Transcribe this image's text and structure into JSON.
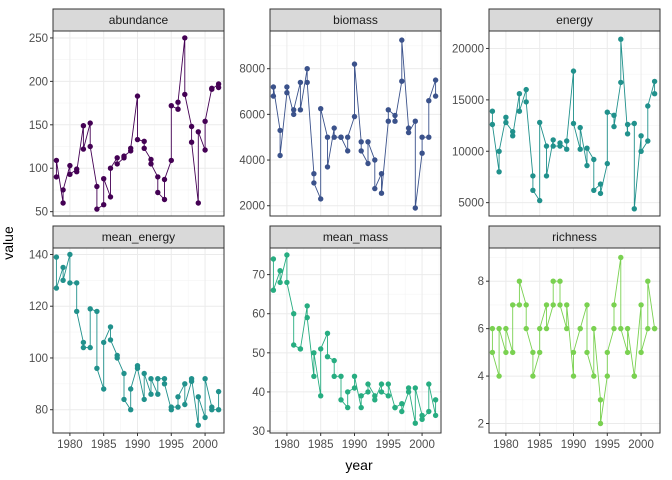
{
  "chart_data": {
    "type": "line",
    "xlabel": "year",
    "ylabel": "value",
    "grid": true,
    "x_ticks": [
      1980,
      1985,
      1990,
      1995,
      2000
    ],
    "x_tick_labels": [
      "1980",
      "1985",
      "1990",
      "1995",
      "2000"
    ],
    "xlim": [
      1977.5,
      2002.8
    ],
    "facet_rows": 2,
    "facet_cols": 3,
    "facets": [
      {
        "name": "abundance",
        "color": "#440154",
        "ylim": [
          45,
          258
        ],
        "y_ticks": [
          50,
          100,
          150,
          200,
          250
        ],
        "y_tick_labels": [
          "50",
          "100",
          "150",
          "200",
          "250"
        ],
        "x": [
          1978,
          1978,
          1979,
          1979,
          1980,
          1980,
          1981,
          1981,
          1982,
          1982,
          1983,
          1983,
          1984,
          1984,
          1985,
          1985,
          1986,
          1986,
          1987,
          1987,
          1988,
          1988,
          1989,
          1989,
          1990,
          1990,
          1991,
          1991,
          1992,
          1992,
          1993,
          1993,
          1994,
          1994,
          1995,
          1995,
          1996,
          1996,
          1997,
          1997,
          1998,
          1998,
          1999,
          1999,
          2000,
          2000,
          2001,
          2001,
          2002,
          2002
        ],
        "y": [
          90,
          109,
          60,
          75,
          103,
          93,
          99,
          96,
          149,
          122,
          152,
          125,
          79,
          53,
          58,
          88,
          67,
          100,
          112,
          105,
          112,
          114,
          120,
          123,
          183,
          133,
          131,
          123,
          110,
          105,
          90,
          72,
          64,
          87,
          109,
          172,
          168,
          176,
          250,
          185,
          148,
          130,
          60,
          142,
          121,
          154,
          192,
          191,
          197,
          193
        ]
      },
      {
        "name": "biomass",
        "color": "#3b528b",
        "ylim": [
          1550,
          9650
        ],
        "y_ticks": [
          2000,
          4000,
          6000,
          8000
        ],
        "y_tick_labels": [
          "2000",
          "4000",
          "6000",
          "8000"
        ],
        "x": [
          1978,
          1978,
          1979,
          1979,
          1980,
          1980,
          1981,
          1981,
          1982,
          1982,
          1983,
          1983,
          1984,
          1984,
          1985,
          1985,
          1986,
          1986,
          1987,
          1987,
          1988,
          1988,
          1989,
          1989,
          1990,
          1990,
          1991,
          1991,
          1992,
          1992,
          1993,
          1993,
          1994,
          1994,
          1995,
          1995,
          1996,
          1996,
          1997,
          1997,
          1998,
          1998,
          1999,
          1999,
          2000,
          2000,
          2001,
          2001,
          2002,
          2002
        ],
        "y": [
          6800,
          7200,
          5300,
          4200,
          6950,
          7200,
          6000,
          6200,
          7400,
          6200,
          8000,
          7400,
          3400,
          3000,
          2300,
          6250,
          5000,
          3700,
          5400,
          5000,
          5000,
          5000,
          4400,
          5000,
          5900,
          8200,
          4800,
          4400,
          3850,
          4800,
          4000,
          2750,
          3400,
          2550,
          5700,
          6200,
          5950,
          5700,
          7450,
          9250,
          5400,
          5200,
          5700,
          1900,
          4300,
          5000,
          5000,
          6600,
          7500,
          6800
        ]
      },
      {
        "name": "energy",
        "color": "#21918c",
        "ylim": [
          3700,
          21700
        ],
        "y_ticks": [
          5000,
          10000,
          15000,
          20000
        ],
        "y_tick_labels": [
          "5000",
          "10000",
          "15000",
          "20000"
        ],
        "x": [
          1978,
          1978,
          1979,
          1979,
          1980,
          1980,
          1981,
          1981,
          1982,
          1982,
          1983,
          1983,
          1984,
          1984,
          1985,
          1985,
          1986,
          1986,
          1987,
          1987,
          1988,
          1988,
          1989,
          1989,
          1990,
          1990,
          1991,
          1991,
          1992,
          1992,
          1993,
          1993,
          1994,
          1994,
          1995,
          1995,
          1996,
          1996,
          1997,
          1997,
          1998,
          1998,
          1999,
          1999,
          2000,
          2000,
          2001,
          2001,
          2002,
          2002
        ],
        "y": [
          13900,
          12600,
          8000,
          10000,
          13300,
          12800,
          11900,
          11500,
          15600,
          13900,
          16000,
          14800,
          7600,
          6200,
          5200,
          12800,
          10500,
          7600,
          11100,
          10500,
          10500,
          10800,
          10200,
          11000,
          17800,
          12700,
          10200,
          12300,
          8600,
          10300,
          9200,
          6200,
          6800,
          5900,
          8800,
          13800,
          13500,
          12400,
          16700,
          20900,
          11700,
          12600,
          12700,
          4400,
          11500,
          10000,
          11000,
          14400,
          16800,
          15600
        ]
      },
      {
        "name": "mean_energy",
        "color": "#21918c",
        "ylim": [
          71,
          142.5
        ],
        "y_ticks": [
          80,
          100,
          120,
          140
        ],
        "y_tick_labels": [
          "80",
          "100",
          "120",
          "140"
        ],
        "x": [
          1978,
          1978,
          1979,
          1979,
          1980,
          1980,
          1981,
          1981,
          1982,
          1982,
          1983,
          1983,
          1984,
          1984,
          1985,
          1985,
          1986,
          1986,
          1987,
          1987,
          1988,
          1988,
          1989,
          1989,
          1990,
          1990,
          1991,
          1991,
          1992,
          1992,
          1993,
          1993,
          1994,
          1994,
          1995,
          1995,
          1996,
          1996,
          1997,
          1997,
          1998,
          1998,
          1999,
          1999,
          2000,
          2000,
          2001,
          2001,
          2002,
          2002
        ],
        "y": [
          139,
          127,
          135,
          130,
          140,
          129,
          129,
          118,
          106,
          104,
          104,
          119,
          118,
          96,
          88,
          106,
          112,
          107,
          101,
          100,
          94,
          84,
          80,
          88,
          97,
          96,
          84,
          94,
          86,
          92,
          86,
          92,
          92,
          90,
          80,
          81,
          81,
          85,
          90,
          82,
          91,
          92,
          74,
          85,
          77,
          92,
          81,
          80,
          80,
          87
        ]
      },
      {
        "name": "mean_mass",
        "color": "#27ad81",
        "ylim": [
          29.5,
          76.8
        ],
        "y_ticks": [
          30,
          40,
          50,
          60,
          70
        ],
        "y_tick_labels": [
          "30",
          "40",
          "50",
          "60",
          "70"
        ],
        "x": [
          1978,
          1978,
          1979,
          1979,
          1980,
          1980,
          1981,
          1981,
          1982,
          1982,
          1983,
          1983,
          1984,
          1984,
          1985,
          1985,
          1986,
          1986,
          1987,
          1987,
          1988,
          1988,
          1989,
          1989,
          1990,
          1990,
          1991,
          1991,
          1992,
          1992,
          1993,
          1993,
          1994,
          1994,
          1995,
          1995,
          1996,
          1996,
          1997,
          1997,
          1998,
          1998,
          1999,
          1999,
          2000,
          2000,
          2001,
          2001,
          2002,
          2002
        ],
        "y": [
          74,
          66,
          71,
          68,
          75,
          68,
          60,
          52,
          51,
          51,
          62,
          59,
          44,
          50,
          39,
          51,
          55,
          49,
          48,
          44,
          44,
          38,
          36,
          40,
          41,
          44,
          36,
          39,
          40,
          42,
          39,
          38,
          42,
          40,
          39,
          42,
          36,
          36,
          37,
          35,
          40,
          41,
          32,
          41,
          34,
          33,
          35,
          42,
          34,
          38
        ]
      },
      {
        "name": "richness",
        "color": "#7ad151",
        "ylim": [
          1.6,
          9.4
        ],
        "y_ticks": [
          2,
          4,
          6,
          8
        ],
        "y_tick_labels": [
          "2",
          "4",
          "6",
          "8"
        ],
        "x": [
          1978,
          1978,
          1979,
          1979,
          1980,
          1980,
          1981,
          1981,
          1982,
          1982,
          1983,
          1983,
          1984,
          1984,
          1985,
          1985,
          1986,
          1986,
          1987,
          1987,
          1988,
          1988,
          1989,
          1989,
          1990,
          1990,
          1991,
          1991,
          1992,
          1992,
          1993,
          1993,
          1994,
          1994,
          1995,
          1995,
          1996,
          1996,
          1997,
          1997,
          1998,
          1998,
          1999,
          1999,
          2000,
          2000,
          2001,
          2001,
          2002,
          2002
        ],
        "y": [
          6,
          5,
          4,
          6,
          5,
          6,
          5,
          7,
          7,
          8,
          7,
          6,
          5,
          4,
          5,
          6,
          7,
          6,
          7,
          8,
          8,
          7,
          6,
          7,
          4,
          5,
          6,
          6,
          7,
          5,
          4,
          6,
          3,
          2,
          4,
          5,
          6,
          7,
          9,
          6,
          5,
          6,
          4,
          4,
          7,
          5,
          6,
          8,
          6,
          6
        ]
      }
    ]
  }
}
